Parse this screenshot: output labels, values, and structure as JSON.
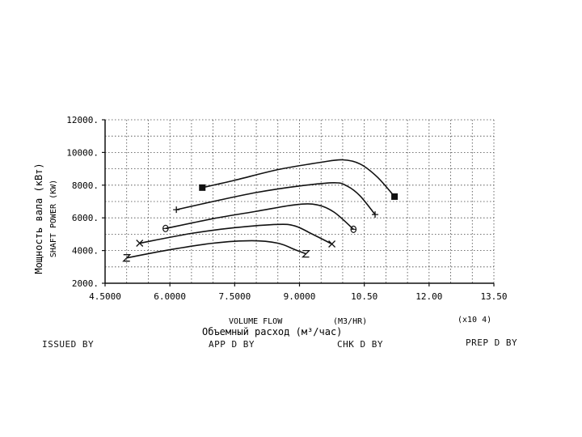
{
  "chart_data": {
    "type": "line",
    "ylabel_ru": "Мощность вала (кВт)",
    "ylabel_en": "SHAFT POWER (KW)",
    "xlabel_en": "VOLUME FLOW",
    "xunit_en": "(M3/HR)",
    "xlabel_ru": "Объемный расход (м³/час)",
    "xmultiplier": "(x10 4)",
    "xlim": [
      4.5,
      13.5
    ],
    "ylim": [
      2000,
      12000
    ],
    "xticks": [
      4.5,
      6.0,
      7.5,
      9.0,
      10.5,
      12.0,
      13.5
    ],
    "xtick_labels": [
      "4.5000",
      "6.0000",
      "7.5000",
      "9.0000",
      "10.50",
      "12.00",
      "13.50"
    ],
    "yticks": [
      2000,
      4000,
      6000,
      8000,
      10000,
      12000
    ],
    "ytick_labels": [
      "2000.",
      "4000.",
      "6000.",
      "8000.",
      "10000.",
      "12000."
    ],
    "grid": true,
    "series": [
      {
        "marker": "square-filled",
        "points": [
          [
            6.75,
            7850
          ],
          [
            7.5,
            8300
          ],
          [
            8.5,
            8950
          ],
          [
            9.5,
            9400
          ],
          [
            10.0,
            9550
          ],
          [
            10.4,
            9300
          ],
          [
            10.8,
            8500
          ],
          [
            11.2,
            7300
          ]
        ]
      },
      {
        "marker": "plus",
        "points": [
          [
            6.15,
            6500
          ],
          [
            7.0,
            7000
          ],
          [
            8.0,
            7550
          ],
          [
            9.0,
            7950
          ],
          [
            9.8,
            8150
          ],
          [
            10.1,
            7950
          ],
          [
            10.4,
            7350
          ],
          [
            10.75,
            6200
          ]
        ]
      },
      {
        "marker": "theta",
        "points": [
          [
            5.9,
            5350
          ],
          [
            7.0,
            5950
          ],
          [
            8.0,
            6400
          ],
          [
            8.9,
            6800
          ],
          [
            9.4,
            6800
          ],
          [
            9.8,
            6350
          ],
          [
            10.25,
            5300
          ]
        ]
      },
      {
        "marker": "x",
        "points": [
          [
            5.3,
            4450
          ],
          [
            6.5,
            5050
          ],
          [
            7.5,
            5400
          ],
          [
            8.5,
            5600
          ],
          [
            8.9,
            5500
          ],
          [
            9.3,
            5000
          ],
          [
            9.75,
            4400
          ]
        ]
      },
      {
        "marker": "z",
        "points": [
          [
            5.0,
            3550
          ],
          [
            6.0,
            4050
          ],
          [
            7.0,
            4450
          ],
          [
            7.9,
            4600
          ],
          [
            8.5,
            4450
          ],
          [
            8.9,
            4050
          ],
          [
            9.15,
            3800
          ]
        ]
      }
    ]
  },
  "footer": {
    "issued_by": "ISSUED BY",
    "app_d_by": "APP D BY",
    "chk_d_by": "CHK D BY",
    "prep_d_by": "PREP D BY"
  }
}
